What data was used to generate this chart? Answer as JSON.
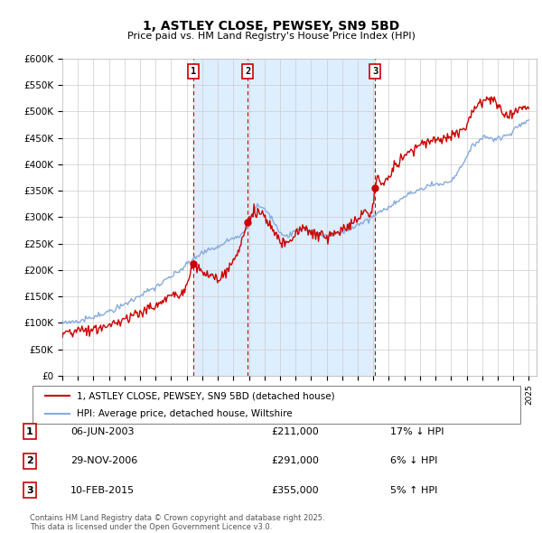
{
  "title": "1, ASTLEY CLOSE, PEWSEY, SN9 5BD",
  "subtitle": "Price paid vs. HM Land Registry's House Price Index (HPI)",
  "ylim": [
    0,
    600000
  ],
  "xlim_start": 1995.0,
  "xlim_end": 2025.5,
  "sale_dates": [
    2003.43,
    2006.91,
    2015.11
  ],
  "sale_prices": [
    211000,
    291000,
    355000
  ],
  "sale_labels": [
    "1",
    "2",
    "3"
  ],
  "sale_info": [
    {
      "label": "1",
      "date": "06-JUN-2003",
      "price": "£211,000",
      "hpi_rel": "17% ↓ HPI"
    },
    {
      "label": "2",
      "date": "29-NOV-2006",
      "price": "£291,000",
      "hpi_rel": "6% ↓ HPI"
    },
    {
      "label": "3",
      "date": "10-FEB-2015",
      "price": "£355,000",
      "hpi_rel": "5% ↑ HPI"
    }
  ],
  "legend_entries": [
    {
      "label": "1, ASTLEY CLOSE, PEWSEY, SN9 5BD (detached house)",
      "color": "#cc0000"
    },
    {
      "label": "HPI: Average price, detached house, Wiltshire",
      "color": "#88aadd"
    }
  ],
  "footer": "Contains HM Land Registry data © Crown copyright and database right 2025.\nThis data is licensed under the Open Government Licence v3.0.",
  "background_color": "#ffffff",
  "plot_bg_color": "#ffffff",
  "shade_color": "#ddeeff",
  "grid_color": "#cccccc",
  "vline_color": "#cc0000",
  "red_line_color": "#cc0000",
  "blue_line_color": "#88aadd",
  "ytick_vals": [
    0,
    50000,
    100000,
    150000,
    200000,
    250000,
    300000,
    350000,
    400000,
    450000,
    500000,
    550000,
    600000
  ],
  "ytick_labels": [
    "£0",
    "£50K",
    "£100K",
    "£150K",
    "£200K",
    "£250K",
    "£300K",
    "£350K",
    "£400K",
    "£450K",
    "£500K",
    "£550K",
    "£600K"
  ]
}
